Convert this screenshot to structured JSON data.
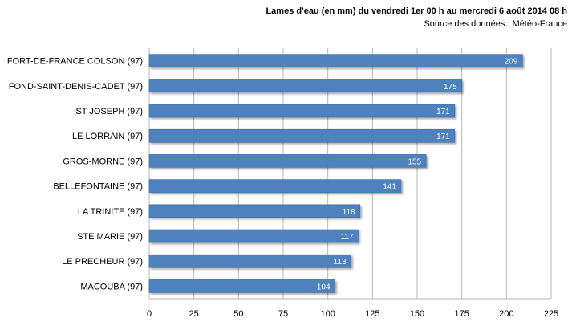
{
  "chart_data": {
    "type": "bar",
    "orientation": "horizontal",
    "title": "Lames d'eau (en mm) du vendredi 1er 00 h au mercredi 6 août  2014 08 h",
    "subtitle": "Source des données : Météo-France",
    "categories": [
      "FORT-DE-FRANCE COLSON (97)",
      "FOND-SAINT-DENIS-CADET (97)",
      "ST JOSEPH (97)",
      "LE LORRAIN (97)",
      "GROS-MORNE (97)",
      "BELLEFONTAINE (97)",
      "LA TRINITE (97)",
      "STE MARIE (97)",
      "LE PRECHEUR (97)",
      "MACOUBA (97)"
    ],
    "values": [
      209,
      175,
      171,
      171,
      155,
      141,
      118,
      117,
      113,
      104
    ],
    "xlim": [
      0,
      225
    ],
    "xticks": [
      "0",
      "25",
      "50",
      "75",
      "100",
      "125",
      "150",
      "175",
      "200",
      "225"
    ],
    "grid": "vertical",
    "legend": "none",
    "bar_color": "#4f81bd",
    "bar_border_color": "#3a6aa8",
    "label_color": "#ffffff",
    "grid_color": "#b7b7b7"
  }
}
